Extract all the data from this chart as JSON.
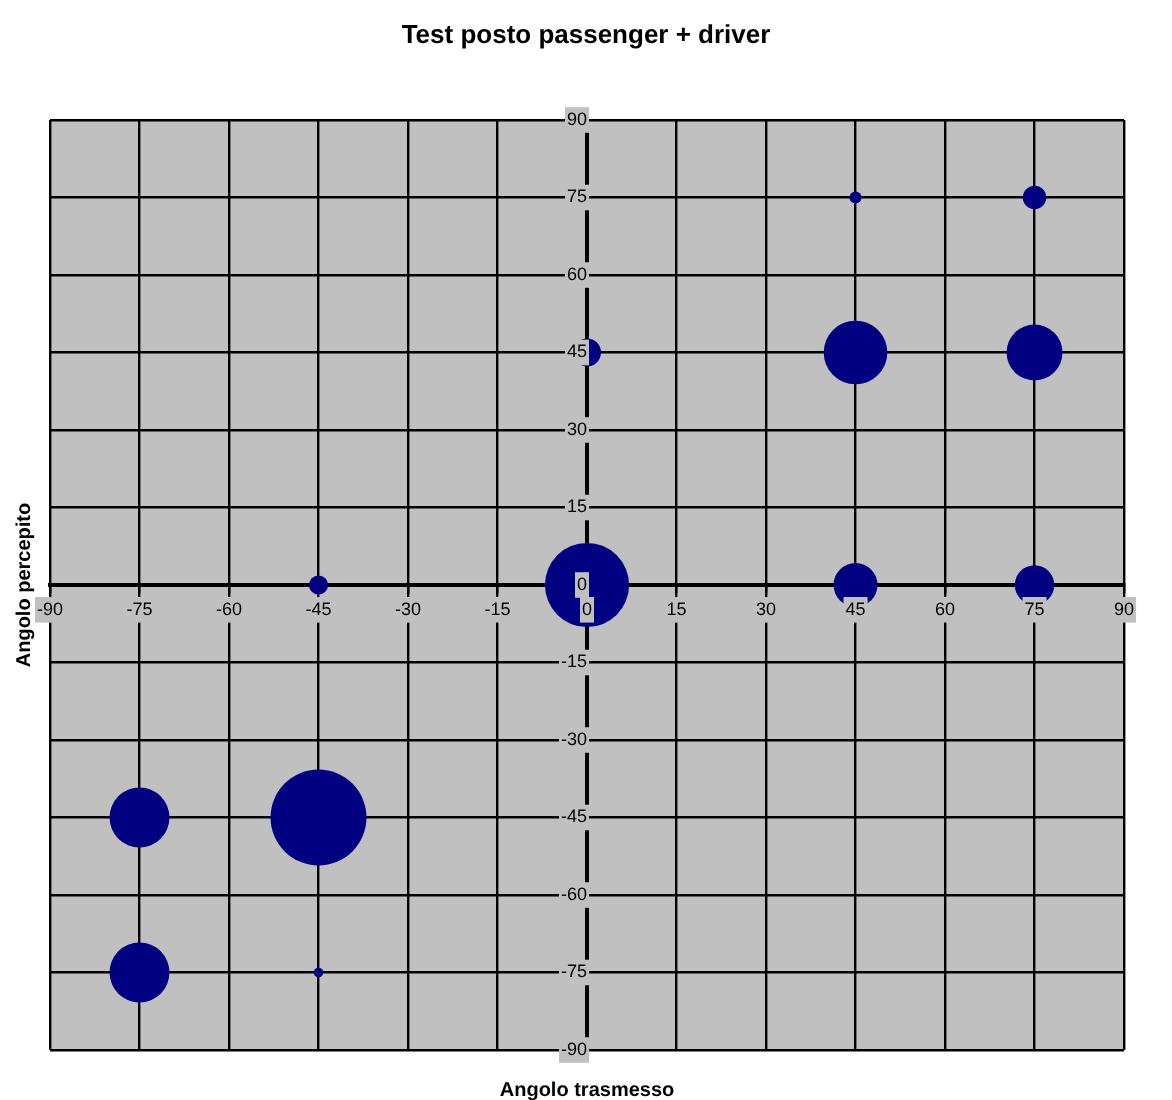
{
  "chart_data": {
    "type": "bubble",
    "title": "Test posto passenger + driver",
    "xlabel": "Angolo trasmesso",
    "ylabel": "Angolo percepito",
    "x": [
      -75,
      -75,
      -45,
      -45,
      -45,
      0,
      0,
      45,
      45,
      45,
      75,
      75,
      75
    ],
    "values": [
      -45,
      -75,
      -45,
      0,
      -75,
      45,
      0,
      75,
      45,
      0,
      75,
      45,
      0
    ],
    "sizes": [
      0.39,
      0.39,
      1,
      0.04,
      0.01,
      0.085,
      0.77,
      0.016,
      0.44,
      0.21,
      0.06,
      0.34,
      0.17
    ],
    "color": "#000080",
    "xlim": [
      -90,
      90
    ],
    "xticks": [
      -90,
      -75,
      -60,
      -45,
      -30,
      -15,
      0,
      15,
      30,
      45,
      60,
      75,
      90
    ],
    "ylim": [
      -90,
      90
    ],
    "yticks": [
      -90,
      -75,
      -60,
      -45,
      -30,
      -15,
      0,
      15,
      30,
      45,
      60,
      75,
      90
    ],
    "grid": true,
    "legend": false
  }
}
